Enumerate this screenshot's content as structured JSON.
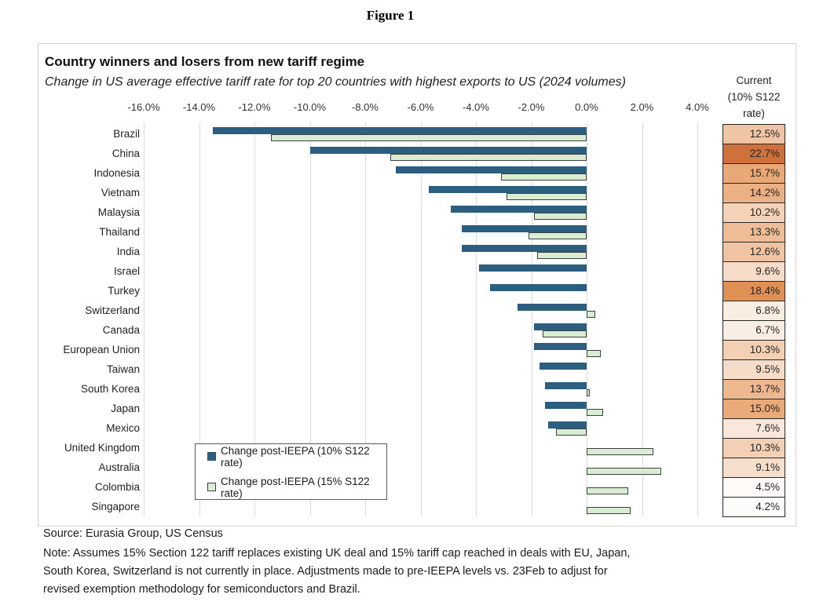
{
  "figure_label": "Figure 1",
  "source": "Source: Eurasia Group, US Census",
  "note_lines": [
    "Note: Assumes 15% Section 122 tariff replaces existing UK deal and 15% tariff cap reached in deals with EU, Japan,",
    "South Korea, Switzerland is not currently in place. Adjustments made to pre-IEEPA levels vs. 23Feb to adjust for",
    "revised exemption methodology for semiconductors and Brazil."
  ],
  "chart_data": {
    "type": "bar",
    "orientation": "horizontal",
    "title": "Country winners and losers from new tariff regime",
    "subtitle": "Change in US average effective tariff rate for top 20 countries with highest exports to US (2024 volumes)",
    "categories": [
      "Brazil",
      "China",
      "Indonesia",
      "Vietnam",
      "Malaysia",
      "Thailand",
      "India",
      "Israel",
      "Turkey",
      "Switzerland",
      "Canada",
      "European Union",
      "Taiwan",
      "South Korea",
      "Japan",
      "Mexico",
      "United Kingdom",
      "Australia",
      "Colombia",
      "Singapore"
    ],
    "series": [
      {
        "name": "Change post-IEEPA (10% S122 rate)",
        "color": "#2C5F7F",
        "values": [
          -13.5,
          -10.0,
          -6.9,
          -5.7,
          -4.9,
          -4.5,
          -4.5,
          -3.9,
          -3.5,
          -2.5,
          -1.9,
          -1.9,
          -1.7,
          -1.5,
          -1.5,
          -1.4,
          null,
          null,
          null,
          null
        ]
      },
      {
        "name": "Change post-IEEPA (15% S122 rate)",
        "color": "#D9EDD2",
        "border_color": "#3F3F3F",
        "values": [
          -11.4,
          -7.1,
          -3.1,
          -2.9,
          -1.9,
          -2.1,
          -1.8,
          null,
          null,
          0.3,
          -1.6,
          0.5,
          null,
          0.1,
          0.6,
          -1.1,
          2.4,
          2.7,
          1.5,
          1.6
        ]
      }
    ],
    "x_axis": {
      "unit": "%",
      "range": [
        -16,
        4.9
      ],
      "grid": true,
      "ticks": [
        {
          "value": -16,
          "label": "-16.0%"
        },
        {
          "value": -14,
          "label": "-14.0%"
        },
        {
          "value": -12,
          "label": "-12.0%"
        },
        {
          "value": -10,
          "label": "-10.0%"
        },
        {
          "value": -8,
          "label": "-8.0%"
        },
        {
          "value": -6,
          "label": "-6.0%"
        },
        {
          "value": -4,
          "label": "-4.0%"
        },
        {
          "value": -2,
          "label": "-2.0%"
        },
        {
          "value": 0,
          "label": "0.0%"
        },
        {
          "value": 2,
          "label": "2.0%"
        },
        {
          "value": 4,
          "label": "4.0%"
        }
      ]
    },
    "legend_position": "inside-bottom-left",
    "current_rate_column": {
      "header_lines": [
        "Current",
        "(10% S122",
        "rate)"
      ],
      "labels": [
        "12.5%",
        "22.7%",
        "15.7%",
        "14.2%",
        "10.2%",
        "13.3%",
        "12.6%",
        "9.6%",
        "18.4%",
        "6.8%",
        "6.7%",
        "10.3%",
        "9.5%",
        "13.7%",
        "15.0%",
        "7.6%",
        "10.3%",
        "9.1%",
        "4.5%",
        "4.2%"
      ],
      "values": [
        12.5,
        22.7,
        15.7,
        14.2,
        10.2,
        13.3,
        12.6,
        9.6,
        18.4,
        6.8,
        6.7,
        10.3,
        9.5,
        13.7,
        15.0,
        7.6,
        10.3,
        9.1,
        4.5,
        4.2
      ],
      "cell_colors": [
        "#F0C5A5",
        "#D0703A",
        "#E9A876",
        "#EBB084",
        "#F4D2B8",
        "#EEBC96",
        "#F0C4A3",
        "#F6DCC8",
        "#E08F55",
        "#FAEDE2",
        "#FAEEE4",
        "#F3CFB3",
        "#F6DDCA",
        "#EDB88F",
        "#EAAB7B",
        "#F8E7DA",
        "#F3CFB3",
        "#F6DECC",
        "#FDFAF8",
        "#FDFCFB"
      ],
      "color_scale": {
        "low": "#FFFFFF",
        "high": "#D0703A"
      }
    }
  }
}
